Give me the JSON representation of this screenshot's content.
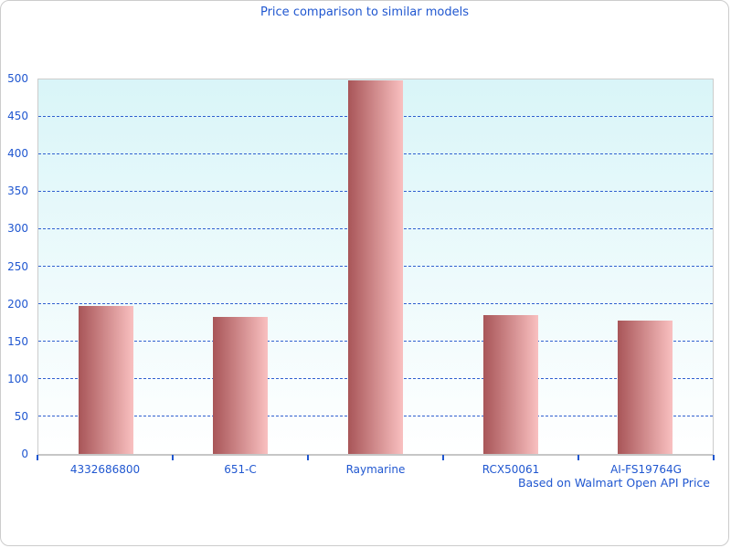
{
  "chart_data": {
    "type": "bar",
    "title": "Price comparison to similar models",
    "categories": [
      "4332686800",
      "651-C",
      "Raymarine",
      "RCX50061",
      "AI-FS19764G"
    ],
    "values": [
      198,
      183,
      499,
      185,
      178
    ],
    "xlabel": "",
    "ylabel": "",
    "ylim": [
      0,
      500
    ],
    "ytick_step": 50,
    "yticks": [
      0,
      50,
      100,
      150,
      200,
      250,
      300,
      350,
      400,
      450,
      500
    ],
    "grid": "horizontal-dashed",
    "legend": "none",
    "note": "Based on Walmart Open API Price",
    "colors": {
      "accent_text": "#2057d0",
      "gridline": "#3060cf",
      "plot_bg_top": "#d9f5f8",
      "plot_bg_bottom": "#ffffff",
      "bar_gradient_start": "#a85558",
      "bar_gradient_end": "#f9c0c0",
      "border": "#cccccc"
    }
  }
}
